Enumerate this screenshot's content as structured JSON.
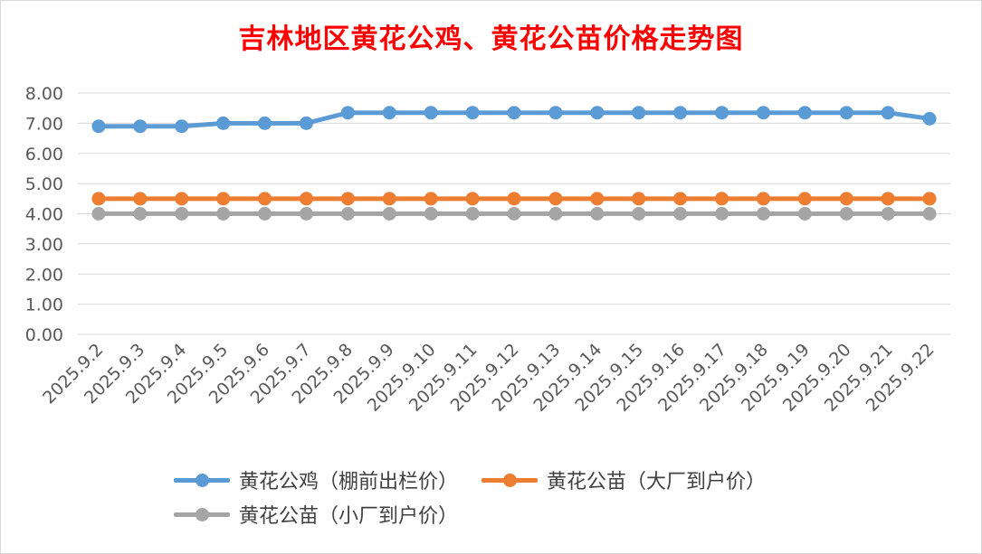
{
  "chart_data": {
    "type": "line",
    "title": "吉林地区黄花公鸡、黄花公苗价格走势图",
    "categories": [
      "2025.9.2",
      "2025.9.3",
      "2025.9.4",
      "2025.9.5",
      "2025.9.6",
      "2025.9.7",
      "2025.9.8",
      "2025.9.9",
      "2025.9.10",
      "2025.9.11",
      "2025.9.12",
      "2025.9.13",
      "2025.9.14",
      "2025.9.15",
      "2025.9.16",
      "2025.9.17",
      "2025.9.18",
      "2025.9.19",
      "2025.9.20",
      "2025.9.21",
      "2025.9.22"
    ],
    "ylim": [
      0,
      8
    ],
    "yticks": [
      "0.00",
      "1.00",
      "2.00",
      "3.00",
      "4.00",
      "5.00",
      "6.00",
      "7.00",
      "8.00"
    ],
    "grid": true,
    "legend_position": "bottom",
    "series": [
      {
        "name": "黄花公鸡（棚前出栏价）",
        "color": "#5b9bd5",
        "values": [
          6.9,
          6.9,
          6.9,
          7.0,
          7.0,
          7.0,
          7.35,
          7.35,
          7.35,
          7.35,
          7.35,
          7.35,
          7.35,
          7.35,
          7.35,
          7.35,
          7.35,
          7.35,
          7.35,
          7.35,
          7.15
        ]
      },
      {
        "name": "黄花公苗（大厂到户价）",
        "color": "#ed7d31",
        "values": [
          4.5,
          4.5,
          4.5,
          4.5,
          4.5,
          4.5,
          4.5,
          4.5,
          4.5,
          4.5,
          4.5,
          4.5,
          4.5,
          4.5,
          4.5,
          4.5,
          4.5,
          4.5,
          4.5,
          4.5,
          4.5
        ]
      },
      {
        "name": "黄花公苗（小厂到户价）",
        "color": "#a5a5a5",
        "values": [
          4.0,
          4.0,
          4.0,
          4.0,
          4.0,
          4.0,
          4.0,
          4.0,
          4.0,
          4.0,
          4.0,
          4.0,
          4.0,
          4.0,
          4.0,
          4.0,
          4.0,
          4.0,
          4.0,
          4.0,
          4.0
        ]
      }
    ]
  }
}
